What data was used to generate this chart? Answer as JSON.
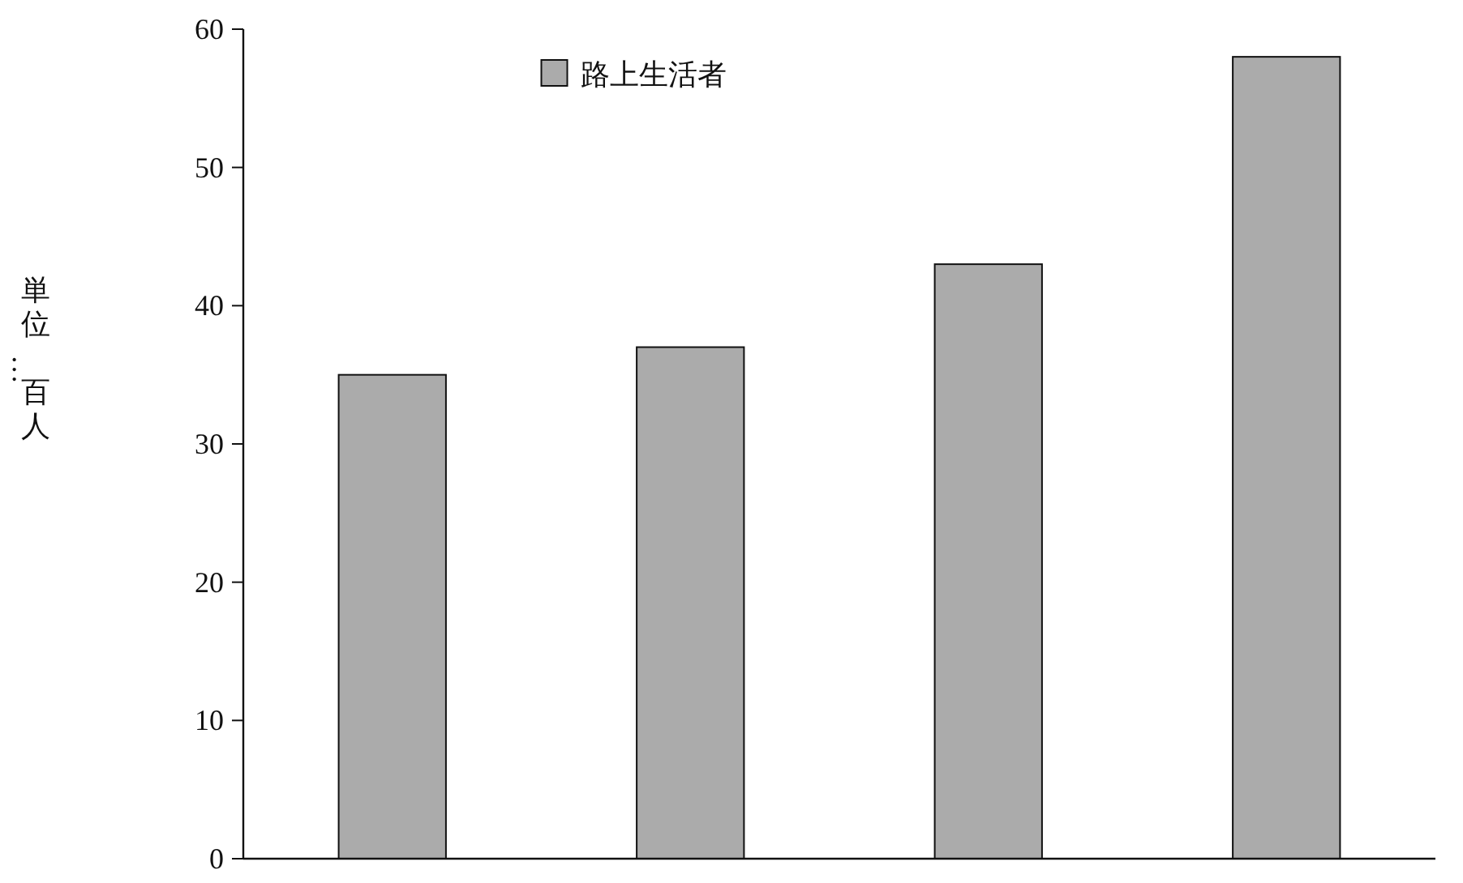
{
  "chart_data": {
    "type": "bar",
    "ylabel": "単位…百人",
    "categories": [
      null,
      null,
      null,
      null
    ],
    "series": [
      {
        "name": "路上生活者",
        "color": "#ababab",
        "values": [
          35,
          37,
          43,
          58
        ]
      }
    ],
    "ylim": [
      0,
      60
    ],
    "yticks": [
      0,
      10,
      20,
      30,
      40,
      50,
      60
    ],
    "legend": "top",
    "grid": false
  }
}
